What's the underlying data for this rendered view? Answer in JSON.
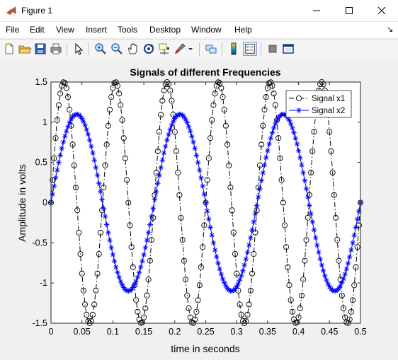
{
  "window": {
    "title": "Figure 1"
  },
  "menu": {
    "items": [
      "File",
      "Edit",
      "View",
      "Insert",
      "Tools",
      "Desktop",
      "Window",
      "Help"
    ],
    "dock_glyph": "↘"
  },
  "toolbar": {
    "buttons": [
      "new-figure-icon",
      "open-file-icon",
      "save-icon",
      "print-icon",
      "pointer-icon",
      "zoom-in-icon",
      "zoom-out-icon",
      "pan-hand-icon",
      "rotate-3d-icon",
      "data-cursor-icon",
      "brush-icon",
      "link-plot-icon",
      "colorbar-icon",
      "legend-icon",
      "hide-plot-tools-icon",
      "show-plot-tools-icon"
    ]
  },
  "colors": {
    "signal_x1": "#000000",
    "signal_x2": "#0000ff",
    "axes_bg": "#ffffff",
    "figure_bg": "#f0f0f0"
  },
  "chart_data": {
    "type": "line",
    "title": "Signals of different Frequencies",
    "xlabel": "time in seconds",
    "ylabel": "Amplitude in volts",
    "xlim": [
      0,
      0.5
    ],
    "ylim": [
      -1.5,
      1.5
    ],
    "xticks": [
      "0",
      "0.05",
      "0.1",
      "0.15",
      "0.2",
      "0.25",
      "0.3",
      "0.35",
      "0.4",
      "0.45",
      "0.5"
    ],
    "yticks": [
      "1.5",
      "1",
      "0.5",
      "0",
      "-0.5",
      "-1",
      "-1.5"
    ],
    "grid": false,
    "legend_position": "top-right",
    "sample_step": 0.0025,
    "series": [
      {
        "name": "Signal x1",
        "amplitude": 1.5,
        "frequency": 12,
        "line_style": "dash-dot",
        "marker": "circle",
        "color": "#000000"
      },
      {
        "name": "Signal x2",
        "amplitude": 1.1,
        "frequency": 6,
        "line_style": "solid",
        "marker": "asterisk",
        "color": "#0000ff"
      }
    ]
  }
}
